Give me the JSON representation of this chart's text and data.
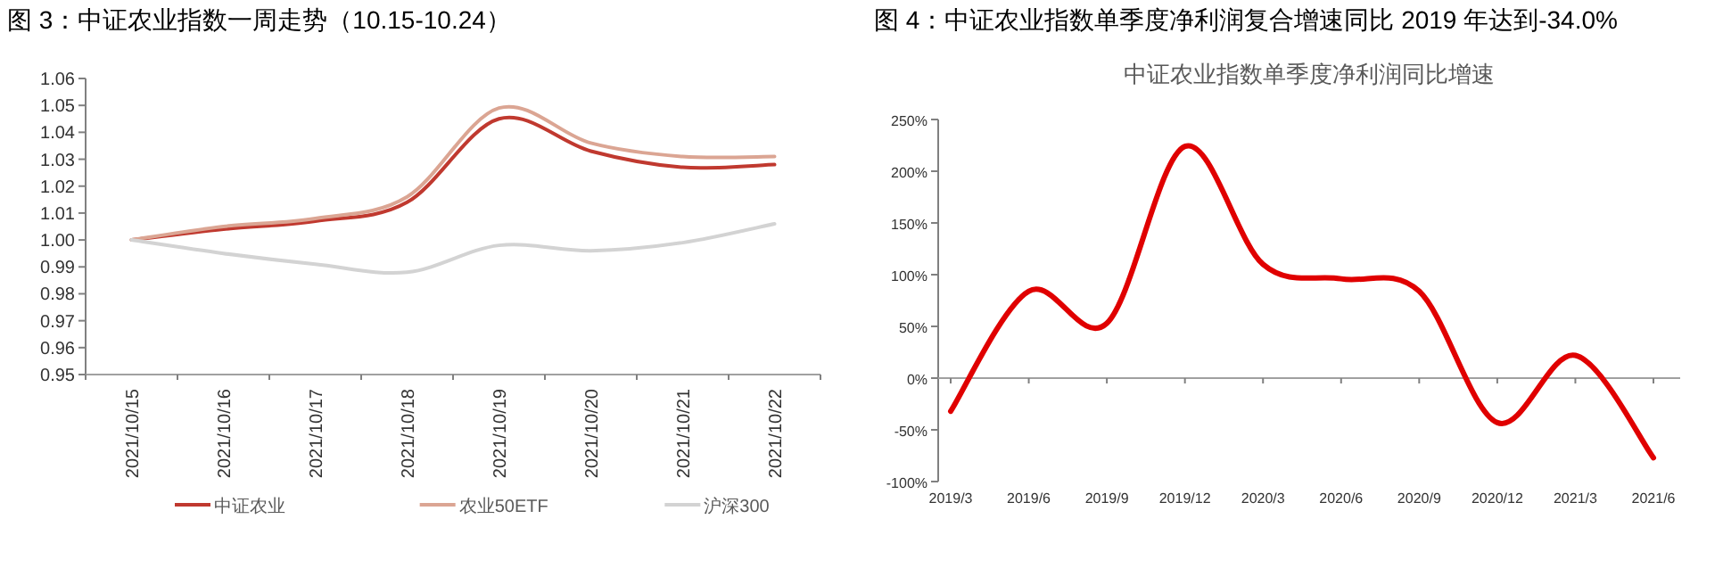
{
  "chart_data": [
    {
      "type": "line",
      "title": "图 3：中证农业指数一周走势（10.15-10.24）",
      "categories": [
        "2021/10/15",
        "2021/10/16",
        "2021/10/17",
        "2021/10/18",
        "2021/10/19",
        "2021/10/20",
        "2021/10/21",
        "2021/10/22"
      ],
      "series": [
        {
          "name": "中证农业",
          "color": "#c0392f",
          "values": [
            1.0,
            1.004,
            1.007,
            1.014,
            1.045,
            1.033,
            1.027,
            1.028
          ]
        },
        {
          "name": "农业50ETF",
          "color": "#dba593",
          "values": [
            1.0,
            1.005,
            1.008,
            1.016,
            1.049,
            1.036,
            1.031,
            1.031
          ]
        },
        {
          "name": "沪深300",
          "color": "#d3d3d3",
          "values": [
            1.0,
            0.995,
            0.991,
            0.988,
            0.998,
            0.996,
            0.999,
            1.006
          ]
        }
      ],
      "ylim": [
        0.95,
        1.06
      ],
      "yticks": [
        {
          "value": 0.95,
          "label": "0.95"
        },
        {
          "value": 0.96,
          "label": "0.96"
        },
        {
          "value": 0.97,
          "label": "0.97"
        },
        {
          "value": 0.98,
          "label": "0.98"
        },
        {
          "value": 0.99,
          "label": "0.99"
        },
        {
          "value": 1.0,
          "label": "1.00"
        },
        {
          "value": 1.01,
          "label": "1.01"
        },
        {
          "value": 1.02,
          "label": "1.02"
        },
        {
          "value": 1.03,
          "label": "1.03"
        },
        {
          "value": 1.04,
          "label": "1.04"
        },
        {
          "value": 1.05,
          "label": "1.05"
        },
        {
          "value": 1.06,
          "label": "1.06"
        }
      ],
      "legend": "bottom",
      "grid": false
    },
    {
      "type": "line",
      "title": "图 4：中证农业指数单季度净利润复合增速同比 2019 年达到-34.0%",
      "subtitle": "中证农业指数单季度净利润同比增速",
      "categories": [
        "2019/3",
        "2019/6",
        "2019/9",
        "2019/12",
        "2020/3",
        "2020/6",
        "2020/9",
        "2020/12",
        "2021/3",
        "2021/6"
      ],
      "series": [
        {
          "color": "#e00000",
          "values": [
            -32,
            84,
            53,
            224,
            110,
            96,
            84,
            -43,
            22,
            -77
          ]
        }
      ],
      "ylim": [
        -100,
        250
      ],
      "yticks": [
        {
          "value": -100,
          "label": "-100%"
        },
        {
          "value": -50,
          "label": "-50%"
        },
        {
          "value": 0,
          "label": "0%"
        },
        {
          "value": 50,
          "label": "50%"
        },
        {
          "value": 100,
          "label": "100%"
        },
        {
          "value": 150,
          "label": "150%"
        },
        {
          "value": 200,
          "label": "200%"
        },
        {
          "value": 250,
          "label": "250%"
        }
      ],
      "legend": false
    }
  ]
}
